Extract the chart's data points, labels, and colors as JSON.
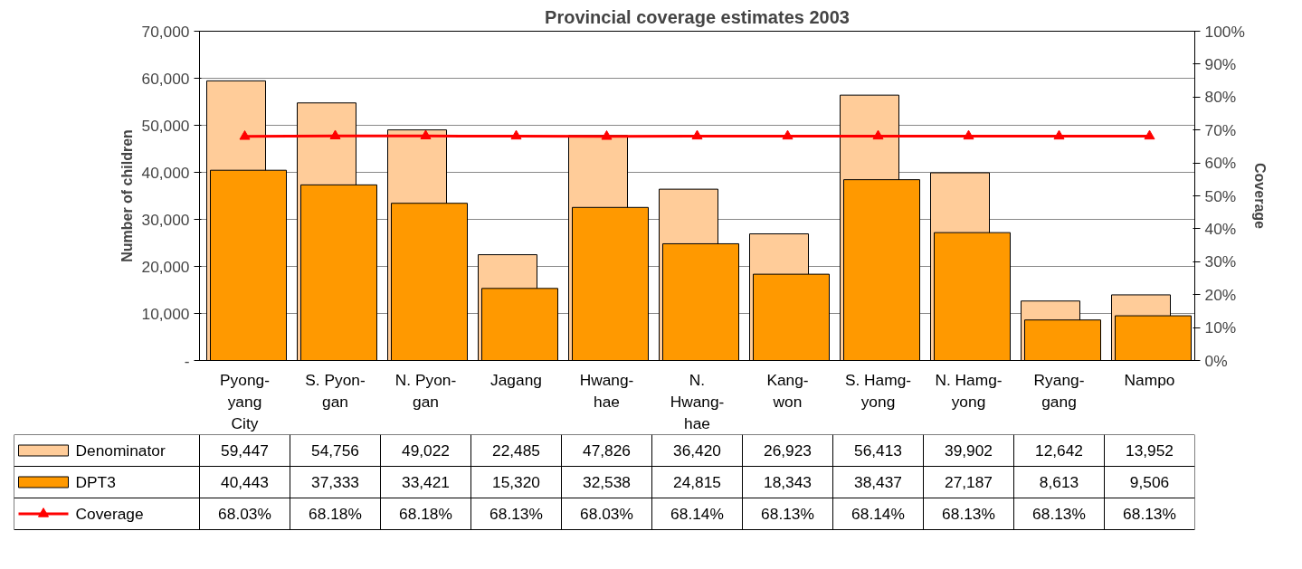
{
  "chart_data": {
    "type": "bar",
    "title": "Provincial coverage estimates 2003",
    "ylabel": "Number of children",
    "y2label": "Coverage",
    "categories": [
      "Pyong-\nyang\nCity",
      "S. Pyon-\ngan",
      "N. Pyon-\ngan",
      "Jagang",
      "Hwang-\nhae",
      "N.\nHwang-\nhae",
      "Kang-\nwon",
      "S. Hamg-\nyong",
      "N. Hamg-\nyong",
      "Ryang-\ngang",
      "Nampo"
    ],
    "series": [
      {
        "name": "Denominator",
        "color": "#ffcc99",
        "values": [
          59447,
          54756,
          49022,
          22485,
          47826,
          36420,
          26923,
          56413,
          39902,
          12642,
          13952
        ],
        "value_labels": [
          "59,447",
          "54,756",
          "49,022",
          "22,485",
          "47,826",
          "36,420",
          "26,923",
          "56,413",
          "39,902",
          "12,642",
          "13,952"
        ]
      },
      {
        "name": "DPT3",
        "color": "#ff9900",
        "values": [
          40443,
          37333,
          33421,
          15320,
          32538,
          24815,
          18343,
          38437,
          27187,
          8613,
          9506
        ],
        "value_labels": [
          "40,443",
          "37,333",
          "33,421",
          "15,320",
          "32,538",
          "24,815",
          "18,343",
          "38,437",
          "27,187",
          "8,613",
          "9,506"
        ]
      },
      {
        "name": "Coverage",
        "color": "#ff0000",
        "type": "line",
        "axis": "y2",
        "marker": "triangle",
        "values": [
          68.03,
          68.18,
          68.18,
          68.13,
          68.03,
          68.14,
          68.13,
          68.14,
          68.13,
          68.13,
          68.13
        ],
        "value_labels": [
          "68.03%",
          "68.18%",
          "68.18%",
          "68.13%",
          "68.03%",
          "68.14%",
          "68.13%",
          "68.14%",
          "68.13%",
          "68.13%",
          "68.13%"
        ]
      }
    ],
    "ylim": [
      0,
      70000
    ],
    "yticks": [
      {
        "value": 0,
        "label": "-"
      },
      {
        "value": 10000,
        "label": "10,000"
      },
      {
        "value": 20000,
        "label": "20,000"
      },
      {
        "value": 30000,
        "label": "30,000"
      },
      {
        "value": 40000,
        "label": "40,000"
      },
      {
        "value": 50000,
        "label": "50,000"
      },
      {
        "value": 60000,
        "label": "60,000"
      },
      {
        "value": 70000,
        "label": "70,000"
      }
    ],
    "y2lim": [
      0,
      100
    ],
    "y2ticks": [
      {
        "value": 0,
        "label": "0%"
      },
      {
        "value": 10,
        "label": "10%"
      },
      {
        "value": 20,
        "label": "20%"
      },
      {
        "value": 30,
        "label": "30%"
      },
      {
        "value": 40,
        "label": "40%"
      },
      {
        "value": 50,
        "label": "50%"
      },
      {
        "value": 60,
        "label": "60%"
      },
      {
        "value": 70,
        "label": "70%"
      },
      {
        "value": 80,
        "label": "80%"
      },
      {
        "value": 90,
        "label": "90%"
      },
      {
        "value": 100,
        "label": "100%"
      }
    ],
    "grid": "y",
    "legend": "bottom left"
  }
}
